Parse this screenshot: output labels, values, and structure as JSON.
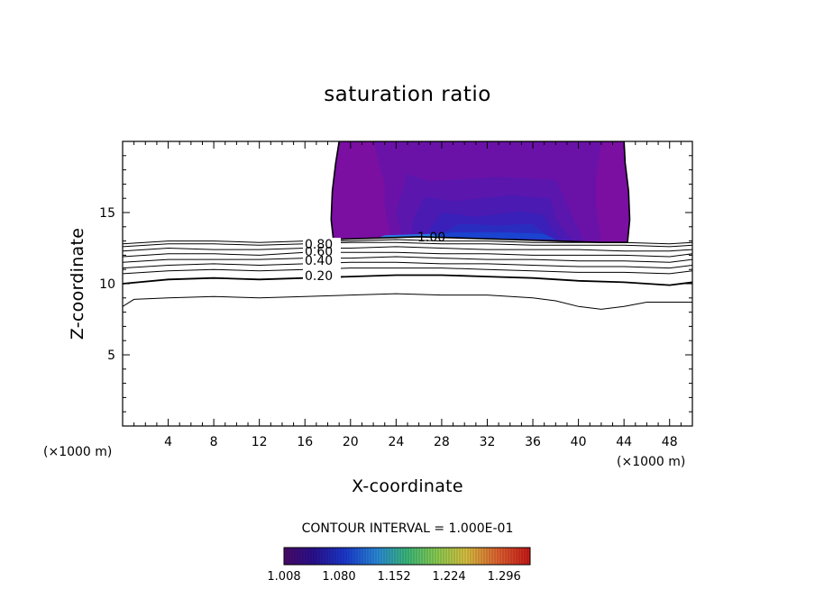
{
  "chart_data": {
    "type": "contour",
    "title": "saturation ratio",
    "xlabel": "X-coordinate",
    "ylabel": "Z-coordinate",
    "x_unit_label": "(×1000 m)",
    "xlim": [
      0,
      50
    ],
    "ylim": [
      0,
      20
    ],
    "x_ticks": [
      "4",
      "8",
      "12",
      "16",
      "20",
      "24",
      "28",
      "32",
      "36",
      "40",
      "44",
      "48"
    ],
    "y_ticks": [
      "5",
      "10",
      "15"
    ],
    "contour_interval_text": "CONTOUR INTERVAL = 1.000E-01",
    "colorbar_ticks": [
      "1.008",
      "1.080",
      "1.152",
      "1.224",
      "1.296"
    ],
    "colorbar_range": [
      1.008,
      1.33
    ],
    "contour_labels": [
      "0.20",
      "0.40",
      "0.60",
      "0.80",
      "1.00"
    ],
    "contour_lines": [
      {
        "level": 0.1,
        "points": [
          [
            0,
            8.4
          ],
          [
            1,
            8.9
          ],
          [
            4,
            9.0
          ],
          [
            8,
            9.1
          ],
          [
            12,
            9.0
          ],
          [
            16,
            9.1
          ],
          [
            20,
            9.2
          ],
          [
            24,
            9.3
          ],
          [
            28,
            9.2
          ],
          [
            32,
            9.2
          ],
          [
            36,
            9.0
          ],
          [
            38,
            8.8
          ],
          [
            40,
            8.4
          ],
          [
            42,
            8.2
          ],
          [
            44,
            8.4
          ],
          [
            46,
            8.7
          ],
          [
            50,
            8.7
          ]
        ]
      },
      {
        "level": 0.2,
        "points": [
          [
            0,
            10.0
          ],
          [
            4,
            10.3
          ],
          [
            8,
            10.4
          ],
          [
            12,
            10.3
          ],
          [
            16,
            10.4
          ],
          [
            20,
            10.5
          ],
          [
            24,
            10.6
          ],
          [
            28,
            10.6
          ],
          [
            32,
            10.5
          ],
          [
            36,
            10.4
          ],
          [
            40,
            10.2
          ],
          [
            44,
            10.1
          ],
          [
            48,
            9.9
          ],
          [
            50,
            10.1
          ]
        ]
      },
      {
        "level": 0.3,
        "points": [
          [
            0,
            10.7
          ],
          [
            4,
            10.9
          ],
          [
            8,
            11.0
          ],
          [
            12,
            10.9
          ],
          [
            16,
            11.0
          ],
          [
            20,
            11.1
          ],
          [
            24,
            11.1
          ],
          [
            28,
            11.1
          ],
          [
            32,
            11.0
          ],
          [
            36,
            10.9
          ],
          [
            40,
            10.8
          ],
          [
            44,
            10.8
          ],
          [
            48,
            10.7
          ],
          [
            50,
            10.9
          ]
        ]
      },
      {
        "level": 0.4,
        "points": [
          [
            0,
            11.1
          ],
          [
            4,
            11.3
          ],
          [
            8,
            11.4
          ],
          [
            12,
            11.3
          ],
          [
            16,
            11.4
          ],
          [
            20,
            11.5
          ],
          [
            24,
            11.5
          ],
          [
            28,
            11.4
          ],
          [
            32,
            11.4
          ],
          [
            36,
            11.3
          ],
          [
            40,
            11.2
          ],
          [
            44,
            11.2
          ],
          [
            48,
            11.1
          ],
          [
            50,
            11.3
          ]
        ]
      },
      {
        "level": 0.5,
        "points": [
          [
            0,
            11.5
          ],
          [
            4,
            11.7
          ],
          [
            8,
            11.7
          ],
          [
            12,
            11.7
          ],
          [
            16,
            11.8
          ],
          [
            20,
            11.8
          ],
          [
            24,
            11.9
          ],
          [
            28,
            11.8
          ],
          [
            32,
            11.7
          ],
          [
            36,
            11.7
          ],
          [
            40,
            11.6
          ],
          [
            44,
            11.6
          ],
          [
            48,
            11.5
          ],
          [
            50,
            11.7
          ]
        ]
      },
      {
        "level": 0.6,
        "points": [
          [
            0,
            11.9
          ],
          [
            4,
            12.1
          ],
          [
            8,
            12.1
          ],
          [
            12,
            12.0
          ],
          [
            16,
            12.2
          ],
          [
            20,
            12.2
          ],
          [
            24,
            12.2
          ],
          [
            28,
            12.1
          ],
          [
            32,
            12.1
          ],
          [
            36,
            12.0
          ],
          [
            40,
            12.0
          ],
          [
            44,
            12.0
          ],
          [
            48,
            11.9
          ],
          [
            50,
            12.1
          ]
        ]
      },
      {
        "level": 0.7,
        "points": [
          [
            0,
            12.3
          ],
          [
            4,
            12.5
          ],
          [
            8,
            12.4
          ],
          [
            12,
            12.4
          ],
          [
            16,
            12.5
          ],
          [
            20,
            12.5
          ],
          [
            24,
            12.6
          ],
          [
            28,
            12.5
          ],
          [
            32,
            12.4
          ],
          [
            36,
            12.4
          ],
          [
            40,
            12.4
          ],
          [
            44,
            12.3
          ],
          [
            48,
            12.3
          ],
          [
            50,
            12.4
          ]
        ]
      },
      {
        "level": 0.8,
        "points": [
          [
            0,
            12.6
          ],
          [
            4,
            12.8
          ],
          [
            8,
            12.8
          ],
          [
            12,
            12.7
          ],
          [
            16,
            12.8
          ],
          [
            20,
            12.9
          ],
          [
            24,
            12.9
          ],
          [
            28,
            12.8
          ],
          [
            32,
            12.8
          ],
          [
            36,
            12.7
          ],
          [
            40,
            12.7
          ],
          [
            44,
            12.7
          ],
          [
            48,
            12.6
          ],
          [
            50,
            12.7
          ]
        ]
      },
      {
        "level": 0.9,
        "points": [
          [
            0,
            12.8
          ],
          [
            4,
            13.0
          ],
          [
            8,
            13.0
          ],
          [
            12,
            12.9
          ],
          [
            16,
            13.0
          ],
          [
            20,
            13.0
          ],
          [
            24,
            13.1
          ],
          [
            28,
            13.0
          ],
          [
            32,
            13.0
          ],
          [
            36,
            12.9
          ],
          [
            40,
            12.9
          ],
          [
            44,
            12.9
          ],
          [
            48,
            12.8
          ],
          [
            50,
            12.9
          ]
        ]
      }
    ],
    "supersaturated_region": {
      "boundary": [
        [
          19.0,
          20.0
        ],
        [
          18.7,
          18.5
        ],
        [
          18.4,
          16.5
        ],
        [
          18.3,
          14.5
        ],
        [
          18.5,
          13.1
        ],
        [
          22.0,
          13.2
        ],
        [
          26.0,
          13.3
        ],
        [
          30.0,
          13.2
        ],
        [
          34.0,
          13.1
        ],
        [
          38.0,
          13.0
        ],
        [
          42.0,
          12.9
        ],
        [
          44.3,
          12.9
        ],
        [
          44.5,
          14.5
        ],
        [
          44.4,
          16.5
        ],
        [
          44.1,
          18.5
        ],
        [
          44.0,
          20.0
        ]
      ],
      "fill_layers": [
        {
          "color": "#7a0fa2",
          "points": [
            [
              19.0,
              20.0
            ],
            [
              18.7,
              18.5
            ],
            [
              18.4,
              16.5
            ],
            [
              18.3,
              14.5
            ],
            [
              18.5,
              13.1
            ],
            [
              22.0,
              13.2
            ],
            [
              26.0,
              13.3
            ],
            [
              30.0,
              13.2
            ],
            [
              34.0,
              13.1
            ],
            [
              38.0,
              13.0
            ],
            [
              42.0,
              12.9
            ],
            [
              44.3,
              12.9
            ],
            [
              44.5,
              14.5
            ],
            [
              44.4,
              16.5
            ],
            [
              44.1,
              18.5
            ],
            [
              44.0,
              20.0
            ]
          ]
        },
        {
          "color": "#6a12a8",
          "points": [
            [
              22.0,
              20.0
            ],
            [
              22.5,
              18.5
            ],
            [
              23.0,
              17.0
            ],
            [
              23.0,
              15.5
            ],
            [
              23.5,
              13.3
            ],
            [
              42.0,
              13.0
            ],
            [
              41.5,
              15.5
            ],
            [
              41.5,
              17.5
            ],
            [
              42.0,
              20.0
            ]
          ]
        },
        {
          "color": "#5a16ad",
          "points": [
            [
              25.0,
              17.7
            ],
            [
              27.0,
              17.2
            ],
            [
              33.0,
              17.5
            ],
            [
              38.0,
              17.3
            ],
            [
              39.0,
              15.5
            ],
            [
              40.5,
              13.0
            ],
            [
              24.5,
              13.3
            ],
            [
              24.0,
              15.0
            ]
          ]
        },
        {
          "color": "#4a1ab3",
          "points": [
            [
              26.5,
              16.1
            ],
            [
              29.0,
              15.8
            ],
            [
              34.0,
              16.2
            ],
            [
              37.5,
              16.0
            ],
            [
              38.0,
              14.5
            ],
            [
              39.5,
              13.0
            ],
            [
              25.5,
              13.3
            ],
            [
              25.5,
              14.5
            ]
          ]
        },
        {
          "color": "#3a20b8",
          "points": [
            [
              28.0,
              15.0
            ],
            [
              31.0,
              14.7
            ],
            [
              35.0,
              15.1
            ],
            [
              37.0,
              14.8
            ],
            [
              37.5,
              14.0
            ],
            [
              38.5,
              13.1
            ],
            [
              26.5,
              13.3
            ]
          ]
        },
        {
          "color": "#2a2cc0",
          "points": [
            [
              29.5,
              14.2
            ],
            [
              33.0,
              14.1
            ],
            [
              36.0,
              14.2
            ],
            [
              37.5,
              13.2
            ],
            [
              27.5,
              13.3
            ]
          ]
        },
        {
          "color": "#1a44d0",
          "points": [
            [
              29.0,
              13.6
            ],
            [
              34.0,
              13.6
            ],
            [
              37.0,
              13.5
            ],
            [
              38.0,
              13.1
            ],
            [
              24.0,
              13.3
            ]
          ]
        },
        {
          "color": "#2a7ae6",
          "points": [
            [
              23.0,
              13.4
            ],
            [
              27.0,
              13.5
            ],
            [
              28.0,
              13.3
            ],
            [
              22.5,
              13.25
            ]
          ]
        }
      ]
    }
  }
}
